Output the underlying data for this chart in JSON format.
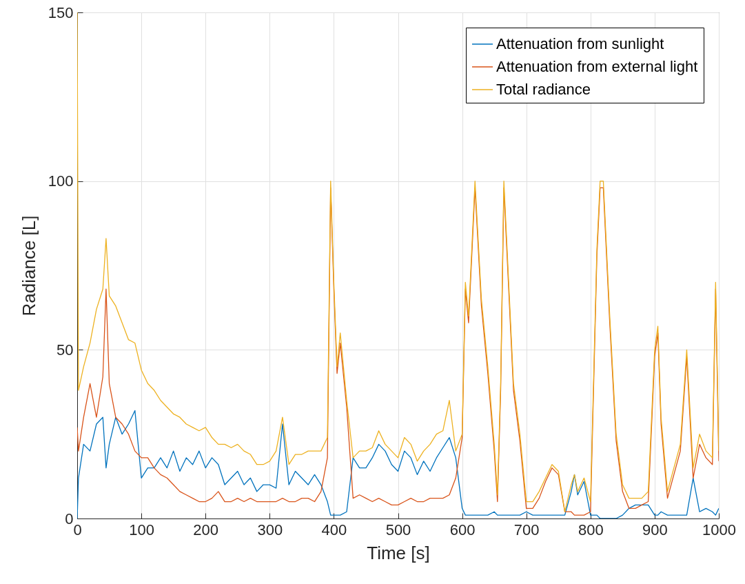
{
  "chart_data": {
    "type": "line",
    "xlabel": "Time [s]",
    "ylabel": "Radiance [L]",
    "xlim": [
      0,
      1000
    ],
    "ylim": [
      0,
      150
    ],
    "xticks": [
      0,
      100,
      200,
      300,
      400,
      500,
      600,
      700,
      800,
      900,
      1000
    ],
    "yticks": [
      0,
      50,
      100,
      150
    ],
    "grid": true,
    "legend": "top right",
    "x": [
      0,
      2,
      10,
      20,
      30,
      40,
      45,
      50,
      60,
      70,
      80,
      90,
      100,
      110,
      120,
      130,
      140,
      150,
      160,
      170,
      180,
      190,
      200,
      210,
      220,
      230,
      240,
      250,
      260,
      270,
      280,
      290,
      300,
      310,
      320,
      330,
      340,
      350,
      360,
      370,
      380,
      390,
      395,
      400,
      405,
      410,
      420,
      430,
      440,
      450,
      460,
      470,
      480,
      490,
      500,
      510,
      520,
      530,
      540,
      550,
      560,
      570,
      580,
      590,
      600,
      605,
      610,
      620,
      630,
      640,
      650,
      655,
      660,
      665,
      670,
      680,
      690,
      700,
      710,
      720,
      730,
      740,
      750,
      760,
      770,
      775,
      780,
      790,
      800,
      810,
      815,
      820,
      830,
      840,
      850,
      860,
      870,
      880,
      890,
      900,
      905,
      910,
      920,
      930,
      940,
      950,
      960,
      970,
      980,
      990,
      995,
      1000
    ],
    "series": [
      {
        "name": "Attenuation from sunlight",
        "color": "#0072bd",
        "values": [
          0,
          12,
          22,
          20,
          28,
          30,
          15,
          22,
          30,
          25,
          28,
          32,
          12,
          15,
          15,
          18,
          15,
          20,
          14,
          18,
          16,
          20,
          15,
          18,
          16,
          10,
          12,
          14,
          10,
          12,
          8,
          10,
          10,
          9,
          28,
          10,
          14,
          12,
          10,
          13,
          10,
          5,
          1,
          1,
          1,
          1,
          2,
          18,
          15,
          15,
          18,
          22,
          20,
          16,
          14,
          20,
          18,
          13,
          17,
          14,
          18,
          21,
          24,
          18,
          3,
          1,
          1,
          1,
          1,
          1,
          2,
          1,
          1,
          1,
          1,
          1,
          1,
          2,
          1,
          1,
          1,
          1,
          1,
          1,
          8,
          13,
          7,
          11,
          1,
          1,
          0,
          0,
          0,
          0,
          1,
          3,
          4,
          4,
          4,
          1,
          1,
          2,
          1,
          1,
          1,
          1,
          12,
          2,
          3,
          2,
          1,
          3
        ]
      },
      {
        "name": "Attenuation from external light",
        "color": "#d95319",
        "values": [
          27,
          20,
          30,
          40,
          30,
          42,
          68,
          40,
          30,
          28,
          25,
          20,
          18,
          18,
          15,
          13,
          12,
          10,
          8,
          7,
          6,
          5,
          5,
          6,
          8,
          5,
          5,
          6,
          5,
          6,
          5,
          5,
          5,
          5,
          6,
          5,
          5,
          6,
          6,
          5,
          8,
          18,
          98,
          68,
          43,
          52,
          33,
          6,
          7,
          6,
          5,
          6,
          5,
          4,
          4,
          5,
          6,
          5,
          5,
          6,
          6,
          6,
          7,
          12,
          24,
          68,
          58,
          98,
          63,
          43,
          20,
          5,
          38,
          98,
          78,
          38,
          23,
          3,
          3,
          6,
          11,
          15,
          13,
          2,
          2,
          1,
          1,
          1,
          2,
          78,
          98,
          98,
          58,
          23,
          8,
          3,
          3,
          4,
          5,
          48,
          55,
          28,
          6,
          13,
          20,
          48,
          12,
          22,
          18,
          16,
          68,
          17
        ]
      },
      {
        "name": "Total radiance",
        "color": "#edb120",
        "values": [
          150,
          38,
          45,
          52,
          62,
          68,
          83,
          66,
          63,
          58,
          53,
          52,
          44,
          40,
          38,
          35,
          33,
          31,
          30,
          28,
          27,
          26,
          27,
          24,
          22,
          22,
          21,
          22,
          20,
          19,
          16,
          16,
          17,
          20,
          30,
          16,
          19,
          19,
          20,
          20,
          20,
          24,
          100,
          70,
          45,
          55,
          35,
          18,
          20,
          20,
          21,
          26,
          22,
          20,
          18,
          24,
          22,
          17,
          20,
          22,
          25,
          26,
          35,
          20,
          25,
          70,
          60,
          100,
          65,
          45,
          22,
          7,
          40,
          100,
          80,
          40,
          25,
          5,
          5,
          8,
          12,
          16,
          14,
          2,
          10,
          13,
          8,
          12,
          5,
          80,
          100,
          100,
          60,
          25,
          10,
          6,
          6,
          6,
          8,
          50,
          57,
          30,
          8,
          15,
          22,
          50,
          15,
          25,
          20,
          18,
          70,
          20
        ]
      }
    ]
  }
}
